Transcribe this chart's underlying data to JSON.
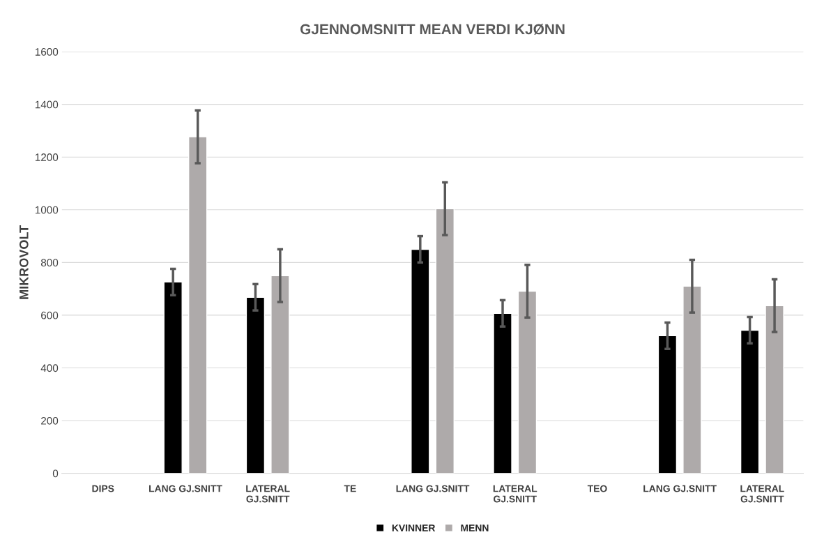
{
  "chart_data": {
    "type": "bar",
    "title": "GJENNOMSNITT MEAN VERDI KJØNN",
    "ylabel": "MIKROVOLT",
    "categories": [
      "DIPS",
      "LANG GJ.SNITT",
      "LATERAL\nGJ.SNITT",
      "TE",
      "LANG GJ.SNITT",
      "LATERAL\nGJ.SNITT",
      "TEO",
      "LANG GJ.SNITT",
      "LATERAL\nGJ.SNITT"
    ],
    "series": [
      {
        "name": "KVINNER",
        "color": "#000000",
        "values": [
          null,
          726,
          668,
          null,
          850,
          607,
          null,
          522,
          543
        ],
        "errors": [
          null,
          50,
          50,
          null,
          50,
          50,
          null,
          50,
          50
        ]
      },
      {
        "name": "MENN",
        "color": "#aeaaaa",
        "values": [
          null,
          1277,
          750,
          null,
          1004,
          691,
          null,
          710,
          636
        ],
        "errors": [
          null,
          100,
          100,
          null,
          100,
          100,
          null,
          100,
          100
        ]
      }
    ],
    "ylim": [
      0,
      1600
    ],
    "yticks": [
      0,
      200,
      400,
      600,
      800,
      1000,
      1200,
      1400,
      1600
    ],
    "grid": "y",
    "legend": "bottom"
  }
}
